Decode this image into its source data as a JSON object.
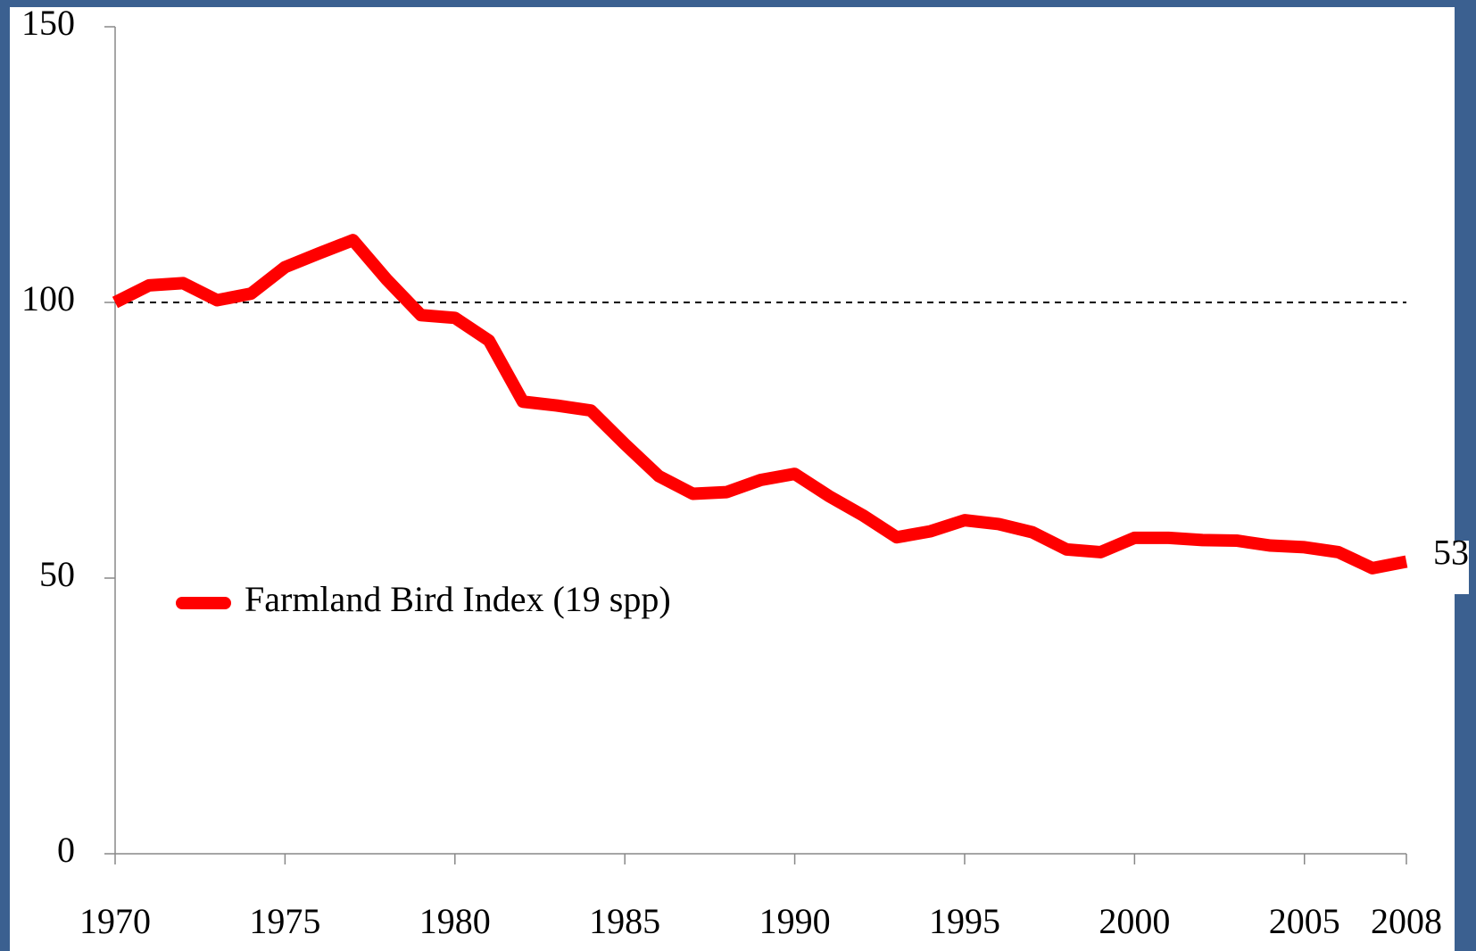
{
  "chart_data": {
    "type": "line",
    "x": [
      1970,
      1971,
      1972,
      1973,
      1974,
      1975,
      1976,
      1977,
      1978,
      1979,
      1980,
      1981,
      1982,
      1983,
      1984,
      1985,
      1986,
      1987,
      1988,
      1989,
      1990,
      1991,
      1992,
      1993,
      1994,
      1995,
      1996,
      1997,
      1998,
      1999,
      2000,
      2001,
      2002,
      2003,
      2004,
      2005,
      2006,
      2007,
      2008
    ],
    "series": [
      {
        "name": "Farmland Bird Index (19 spp)",
        "color": "#ff0000",
        "values": [
          100,
          103.1,
          103.5,
          100.4,
          101.6,
          106.4,
          108.9,
          111.3,
          104.1,
          97.7,
          97.2,
          93.1,
          82,
          81.3,
          80.4,
          74.3,
          68.5,
          65.3,
          65.6,
          67.8,
          68.9,
          64.9,
          61.4,
          57.4,
          58.5,
          60.5,
          59.8,
          58.3,
          55.2,
          54.7,
          57.3,
          57.3,
          56.9,
          56.8,
          55.9,
          55.6,
          54.7,
          51.8,
          53
        ]
      }
    ],
    "xlim": [
      1970,
      2008
    ],
    "xticks": [
      1970,
      1975,
      1980,
      1985,
      1990,
      1995,
      2000,
      2005,
      2008
    ],
    "ylim": [
      0,
      150
    ],
    "yticks": [
      0,
      50,
      100,
      150
    ],
    "reference_line": 100,
    "grid": false,
    "legend": "center left"
  }
}
